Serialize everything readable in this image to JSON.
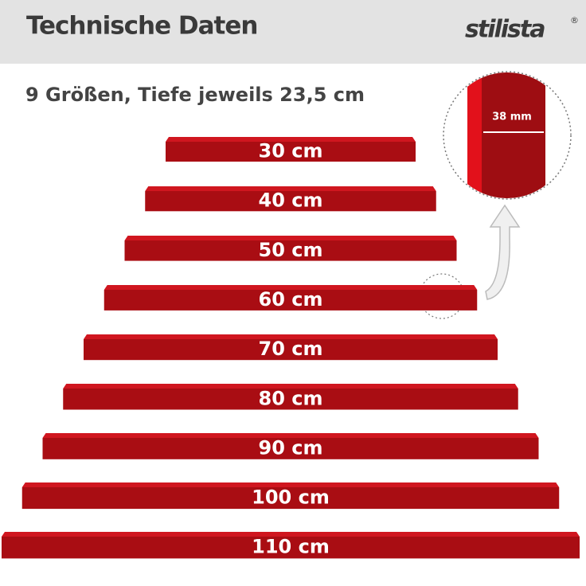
{
  "header": {
    "title": "Technische Daten",
    "brand": "stilista",
    "brand_mark": "®"
  },
  "subtitle": "9 Größen, Tiefe jeweils 23,5 cm",
  "detail": {
    "label": "38 mm"
  },
  "shelves": [
    "30 cm",
    "40 cm",
    "50 cm",
    "60 cm",
    "70 cm",
    "80 cm",
    "90 cm",
    "100 cm",
    "110 cm"
  ]
}
